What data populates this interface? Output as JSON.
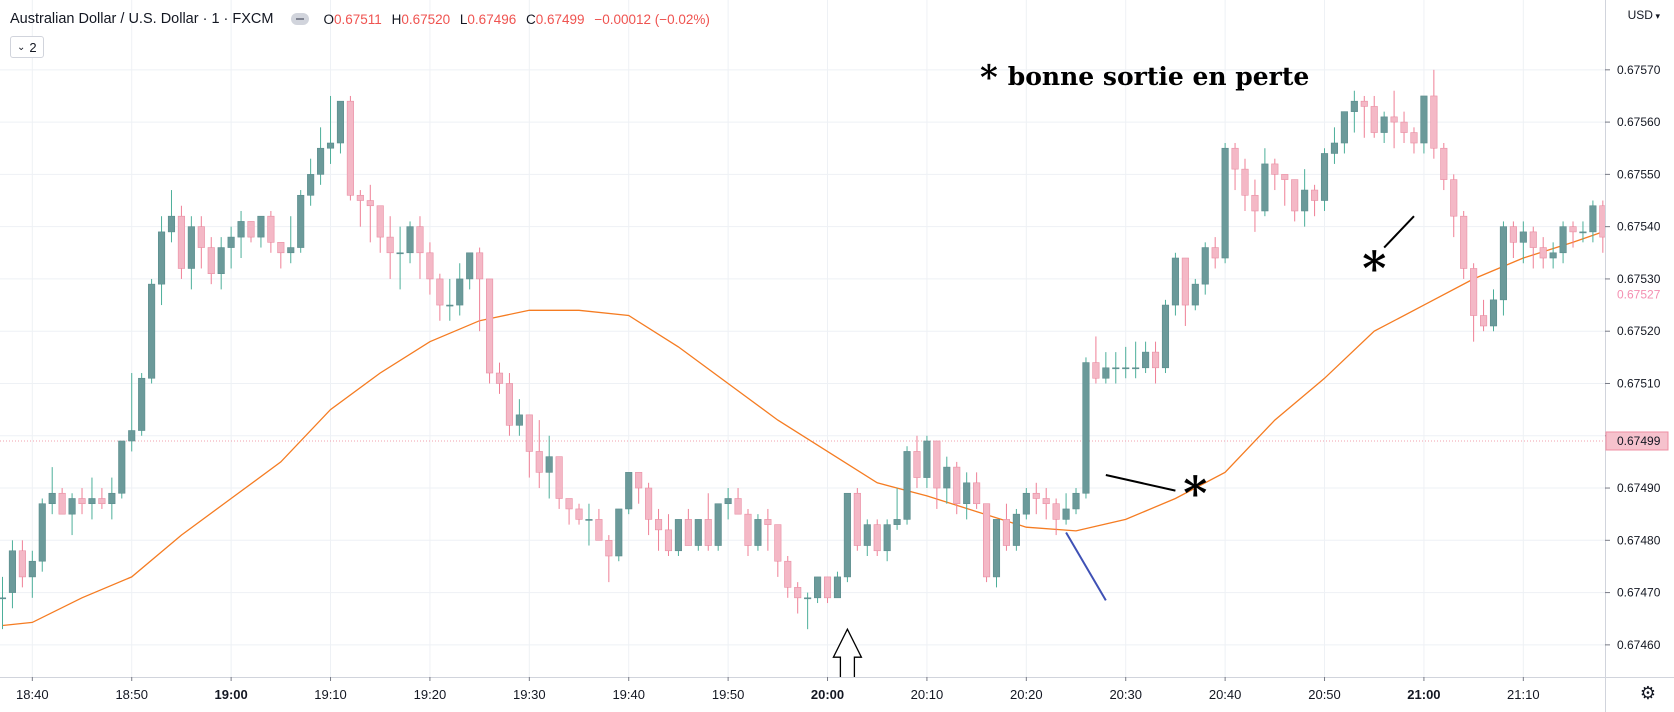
{
  "header": {
    "symbol": "Australian Dollar / U.S. Dollar · 1 · FXCM",
    "o_label": "O",
    "o_value": "0.67511",
    "h_label": "H",
    "h_value": "0.67520",
    "l_label": "L",
    "l_value": "0.67496",
    "c_label": "C",
    "c_value": "0.67499",
    "change": "−0.00012 (−0.02%)",
    "indicator_count": "2"
  },
  "currency_menu": "USD",
  "annotation_text": "bonne sortie en perte",
  "annotation_star": "*",
  "colors": {
    "up": "#6b9a9a",
    "down": "#f4b8c6",
    "ma": "#f57c22",
    "last_price_bg": "#f6c2cd"
  },
  "chart_data": {
    "type": "candlestick",
    "interval_minutes": 1,
    "start_time": "18:37",
    "ylim": [
      0.67455,
      0.67578
    ],
    "y_ticks": [
      "0.67460",
      "0.67470",
      "0.67480",
      "0.67490",
      "0.67500",
      "0.67510",
      "0.67520",
      "0.67530",
      "0.67540",
      "0.67550",
      "0.67560",
      "0.67570"
    ],
    "x_ticks": [
      {
        "time": "18:40",
        "label": "18:40",
        "bold": false
      },
      {
        "time": "18:50",
        "label": "18:50",
        "bold": false
      },
      {
        "time": "19:00",
        "label": "19:00",
        "bold": true
      },
      {
        "time": "19:10",
        "label": "19:10",
        "bold": false
      },
      {
        "time": "19:20",
        "label": "19:20",
        "bold": false
      },
      {
        "time": "19:30",
        "label": "19:30",
        "bold": false
      },
      {
        "time": "19:40",
        "label": "19:40",
        "bold": false
      },
      {
        "time": "19:50",
        "label": "19:50",
        "bold": false
      },
      {
        "time": "20:00",
        "label": "20:00",
        "bold": true
      },
      {
        "time": "20:10",
        "label": "20:10",
        "bold": false
      },
      {
        "time": "20:20",
        "label": "20:20",
        "bold": false
      },
      {
        "time": "20:30",
        "label": "20:30",
        "bold": false
      },
      {
        "time": "20:40",
        "label": "20:40",
        "bold": false
      },
      {
        "time": "20:50",
        "label": "20:50",
        "bold": false
      },
      {
        "time": "21:00",
        "label": "21:00",
        "bold": true
      },
      {
        "time": "21:10",
        "label": "21:10",
        "bold": false
      }
    ],
    "price_labels": [
      {
        "value": 0.67499,
        "label": "0.67499",
        "style": "current"
      },
      {
        "value": 0.67527,
        "label": "0.67527",
        "style": "faded"
      }
    ],
    "moving_average": [
      {
        "t": "18:37",
        "v": 0.674637
      },
      {
        "t": "18:40",
        "v": 0.674643
      },
      {
        "t": "18:45",
        "v": 0.67469
      },
      {
        "t": "18:50",
        "v": 0.67473
      },
      {
        "t": "18:55",
        "v": 0.67481
      },
      {
        "t": "19:00",
        "v": 0.67488
      },
      {
        "t": "19:05",
        "v": 0.67495
      },
      {
        "t": "19:10",
        "v": 0.67505
      },
      {
        "t": "19:15",
        "v": 0.67512
      },
      {
        "t": "19:20",
        "v": 0.67518
      },
      {
        "t": "19:25",
        "v": 0.67522
      },
      {
        "t": "19:30",
        "v": 0.67524
      },
      {
        "t": "19:35",
        "v": 0.67524
      },
      {
        "t": "19:40",
        "v": 0.67523
      },
      {
        "t": "19:45",
        "v": 0.67517
      },
      {
        "t": "19:50",
        "v": 0.6751
      },
      {
        "t": "19:55",
        "v": 0.67503
      },
      {
        "t": "20:00",
        "v": 0.67497
      },
      {
        "t": "20:05",
        "v": 0.67491
      },
      {
        "t": "20:10",
        "v": 0.674885
      },
      {
        "t": "20:15",
        "v": 0.674855
      },
      {
        "t": "20:20",
        "v": 0.674825
      },
      {
        "t": "20:25",
        "v": 0.674818
      },
      {
        "t": "20:30",
        "v": 0.67484
      },
      {
        "t": "20:35",
        "v": 0.67488
      },
      {
        "t": "20:40",
        "v": 0.67493
      },
      {
        "t": "20:45",
        "v": 0.67503
      },
      {
        "t": "20:50",
        "v": 0.67511
      },
      {
        "t": "20:55",
        "v": 0.6752
      },
      {
        "t": "21:00",
        "v": 0.67525
      },
      {
        "t": "21:05",
        "v": 0.6753
      },
      {
        "t": "21:10",
        "v": 0.67534
      },
      {
        "t": "21:15",
        "v": 0.67537
      },
      {
        "t": "21:18",
        "v": 0.67539
      }
    ],
    "candles": [
      [
        0.67469,
        0.67473,
        0.67463,
        0.67469
      ],
      [
        0.6747,
        0.6748,
        0.67467,
        0.67478
      ],
      [
        0.67478,
        0.6748,
        0.67471,
        0.67473
      ],
      [
        0.67473,
        0.67478,
        0.67469,
        0.67476
      ],
      [
        0.67476,
        0.67488,
        0.67474,
        0.67487
      ],
      [
        0.67487,
        0.67494,
        0.67485,
        0.67489
      ],
      [
        0.67489,
        0.6749,
        0.67485,
        0.67485
      ],
      [
        0.67485,
        0.67489,
        0.67481,
        0.67488
      ],
      [
        0.67488,
        0.6749,
        0.67485,
        0.67487
      ],
      [
        0.67487,
        0.67492,
        0.67484,
        0.67488
      ],
      [
        0.67488,
        0.6749,
        0.67486,
        0.67487
      ],
      [
        0.67487,
        0.67492,
        0.67484,
        0.67489
      ],
      [
        0.67489,
        0.67498,
        0.67488,
        0.67499
      ],
      [
        0.67499,
        0.67512,
        0.67497,
        0.67501
      ],
      [
        0.67501,
        0.67512,
        0.675,
        0.67511
      ],
      [
        0.67511,
        0.6753,
        0.6751,
        0.67529
      ],
      [
        0.67529,
        0.67542,
        0.67525,
        0.67539
      ],
      [
        0.67539,
        0.67547,
        0.67537,
        0.67542
      ],
      [
        0.67542,
        0.67544,
        0.6753,
        0.67532
      ],
      [
        0.67532,
        0.67542,
        0.67528,
        0.6754
      ],
      [
        0.6754,
        0.67542,
        0.67532,
        0.67536
      ],
      [
        0.67536,
        0.67538,
        0.67529,
        0.67531
      ],
      [
        0.67531,
        0.67538,
        0.67528,
        0.67536
      ],
      [
        0.67536,
        0.6754,
        0.67532,
        0.67538
      ],
      [
        0.67538,
        0.67543,
        0.67534,
        0.67541
      ],
      [
        0.67541,
        0.67541,
        0.67537,
        0.67538
      ],
      [
        0.67538,
        0.67542,
        0.67536,
        0.67542
      ],
      [
        0.67542,
        0.67543,
        0.67535,
        0.67537
      ],
      [
        0.67537,
        0.67537,
        0.67532,
        0.67535
      ],
      [
        0.67535,
        0.67542,
        0.67533,
        0.67536
      ],
      [
        0.67536,
        0.67547,
        0.67535,
        0.67546
      ],
      [
        0.67546,
        0.67553,
        0.67544,
        0.6755
      ],
      [
        0.6755,
        0.67559,
        0.67548,
        0.67555
      ],
      [
        0.67555,
        0.67565,
        0.67552,
        0.67556
      ],
      [
        0.67556,
        0.67564,
        0.67554,
        0.67564
      ],
      [
        0.67564,
        0.67565,
        0.67545,
        0.67546
      ],
      [
        0.67546,
        0.67547,
        0.6754,
        0.67545
      ],
      [
        0.67545,
        0.67548,
        0.67537,
        0.67544
      ],
      [
        0.67544,
        0.67544,
        0.67535,
        0.67538
      ],
      [
        0.67538,
        0.67542,
        0.6753,
        0.67535
      ],
      [
        0.67535,
        0.6754,
        0.67528,
        0.67535
      ],
      [
        0.67535,
        0.67541,
        0.67533,
        0.6754
      ],
      [
        0.6754,
        0.67542,
        0.6753,
        0.67535
      ],
      [
        0.67535,
        0.67537,
        0.67527,
        0.6753
      ],
      [
        0.6753,
        0.67531,
        0.67522,
        0.67525
      ],
      [
        0.67525,
        0.6753,
        0.67522,
        0.67525
      ],
      [
        0.67525,
        0.67533,
        0.67523,
        0.6753
      ],
      [
        0.6753,
        0.67535,
        0.67528,
        0.67535
      ],
      [
        0.67535,
        0.67536,
        0.6752,
        0.6753
      ],
      [
        0.6753,
        0.67529,
        0.6751,
        0.67512
      ],
      [
        0.67512,
        0.67514,
        0.67508,
        0.6751
      ],
      [
        0.6751,
        0.67512,
        0.675,
        0.67502
      ],
      [
        0.67502,
        0.67507,
        0.675,
        0.67504
      ],
      [
        0.67504,
        0.67504,
        0.67492,
        0.67497
      ],
      [
        0.67497,
        0.67503,
        0.6749,
        0.67493
      ],
      [
        0.67493,
        0.675,
        0.67488,
        0.67496
      ],
      [
        0.67496,
        0.67496,
        0.67486,
        0.67488
      ],
      [
        0.67488,
        0.67488,
        0.67483,
        0.67486
      ],
      [
        0.67486,
        0.67487,
        0.67483,
        0.67484
      ],
      [
        0.67484,
        0.67487,
        0.67479,
        0.67484
      ],
      [
        0.67484,
        0.67486,
        0.6748,
        0.6748
      ],
      [
        0.6748,
        0.67481,
        0.67472,
        0.67477
      ],
      [
        0.67477,
        0.67486,
        0.67476,
        0.67486
      ],
      [
        0.67486,
        0.67493,
        0.67485,
        0.67493
      ],
      [
        0.67493,
        0.67493,
        0.67487,
        0.6749
      ],
      [
        0.6749,
        0.67491,
        0.67481,
        0.67484
      ],
      [
        0.67484,
        0.67486,
        0.67478,
        0.67482
      ],
      [
        0.67482,
        0.67485,
        0.67477,
        0.67478
      ],
      [
        0.67478,
        0.67484,
        0.67477,
        0.67484
      ],
      [
        0.67484,
        0.67486,
        0.67479,
        0.67479
      ],
      [
        0.67479,
        0.67484,
        0.67478,
        0.67484
      ],
      [
        0.67484,
        0.67489,
        0.67478,
        0.67479
      ],
      [
        0.67479,
        0.67487,
        0.67478,
        0.67487
      ],
      [
        0.67487,
        0.6749,
        0.67484,
        0.67488
      ],
      [
        0.67488,
        0.6749,
        0.67485,
        0.67485
      ],
      [
        0.67485,
        0.67486,
        0.67477,
        0.67479
      ],
      [
        0.67479,
        0.67485,
        0.67478,
        0.67484
      ],
      [
        0.67484,
        0.67486,
        0.67478,
        0.67483
      ],
      [
        0.67483,
        0.67483,
        0.67473,
        0.67476
      ],
      [
        0.67476,
        0.67477,
        0.67469,
        0.67471
      ],
      [
        0.67471,
        0.67472,
        0.67466,
        0.67469
      ],
      [
        0.67469,
        0.6747,
        0.67463,
        0.67469
      ],
      [
        0.67469,
        0.67473,
        0.67468,
        0.67473
      ],
      [
        0.67473,
        0.67473,
        0.67468,
        0.67469
      ],
      [
        0.67469,
        0.67474,
        0.67469,
        0.67473
      ],
      [
        0.67473,
        0.67489,
        0.67472,
        0.67489
      ],
      [
        0.67489,
        0.6749,
        0.67478,
        0.67479
      ],
      [
        0.67479,
        0.67484,
        0.67477,
        0.67483
      ],
      [
        0.67483,
        0.67484,
        0.67477,
        0.67478
      ],
      [
        0.67478,
        0.67484,
        0.67476,
        0.67483
      ],
      [
        0.67483,
        0.6749,
        0.67482,
        0.67484
      ],
      [
        0.67484,
        0.67498,
        0.67483,
        0.67497
      ],
      [
        0.67497,
        0.675,
        0.6749,
        0.67492
      ],
      [
        0.67492,
        0.675,
        0.6749,
        0.67499
      ],
      [
        0.67499,
        0.67499,
        0.67486,
        0.6749
      ],
      [
        0.6749,
        0.67496,
        0.67487,
        0.67494
      ],
      [
        0.67494,
        0.67495,
        0.67485,
        0.67487
      ],
      [
        0.67487,
        0.67493,
        0.67484,
        0.67491
      ],
      [
        0.67491,
        0.67493,
        0.67486,
        0.67487
      ],
      [
        0.67487,
        0.67487,
        0.67472,
        0.67473
      ],
      [
        0.67473,
        0.67484,
        0.67471,
        0.67484
      ],
      [
        0.67484,
        0.67487,
        0.67478,
        0.67479
      ],
      [
        0.67479,
        0.67486,
        0.67478,
        0.67485
      ],
      [
        0.67485,
        0.6749,
        0.67484,
        0.67489
      ],
      [
        0.67489,
        0.67491,
        0.67485,
        0.67488
      ],
      [
        0.67488,
        0.6749,
        0.67484,
        0.67487
      ],
      [
        0.67487,
        0.67488,
        0.67481,
        0.67484
      ],
      [
        0.67484,
        0.67489,
        0.67483,
        0.67486
      ],
      [
        0.67486,
        0.6749,
        0.67485,
        0.67489
      ],
      [
        0.67489,
        0.67515,
        0.67488,
        0.67514
      ],
      [
        0.67514,
        0.67519,
        0.6751,
        0.67511
      ],
      [
        0.67511,
        0.67516,
        0.6751,
        0.67513
      ],
      [
        0.67513,
        0.67516,
        0.6751,
        0.67513
      ],
      [
        0.67513,
        0.67517,
        0.67511,
        0.67513
      ],
      [
        0.67513,
        0.67518,
        0.67511,
        0.67513
      ],
      [
        0.67513,
        0.67518,
        0.67512,
        0.67516
      ],
      [
        0.67516,
        0.67518,
        0.6751,
        0.67513
      ],
      [
        0.67513,
        0.67526,
        0.67512,
        0.67525
      ],
      [
        0.67525,
        0.67535,
        0.67523,
        0.67534
      ],
      [
        0.67534,
        0.67534,
        0.67521,
        0.67525
      ],
      [
        0.67525,
        0.6753,
        0.67524,
        0.67529
      ],
      [
        0.67529,
        0.67537,
        0.67527,
        0.67536
      ],
      [
        0.67536,
        0.67538,
        0.67532,
        0.67534
      ],
      [
        0.67534,
        0.67556,
        0.67533,
        0.67555
      ],
      [
        0.67555,
        0.67556,
        0.67547,
        0.67551
      ],
      [
        0.67551,
        0.67553,
        0.67543,
        0.67546
      ],
      [
        0.67546,
        0.67549,
        0.67539,
        0.67543
      ],
      [
        0.67543,
        0.67555,
        0.67542,
        0.67552
      ],
      [
        0.67552,
        0.67553,
        0.67547,
        0.6755
      ],
      [
        0.6755,
        0.6755,
        0.67544,
        0.67549
      ],
      [
        0.67549,
        0.67549,
        0.67541,
        0.67543
      ],
      [
        0.67543,
        0.67551,
        0.6754,
        0.67547
      ],
      [
        0.67547,
        0.67548,
        0.67542,
        0.67545
      ],
      [
        0.67545,
        0.67555,
        0.67543,
        0.67554
      ],
      [
        0.67554,
        0.67559,
        0.67552,
        0.67556
      ],
      [
        0.67556,
        0.67562,
        0.67554,
        0.67562
      ],
      [
        0.67562,
        0.67566,
        0.67558,
        0.67564
      ],
      [
        0.67564,
        0.67565,
        0.67557,
        0.67563
      ],
      [
        0.67563,
        0.67565,
        0.67557,
        0.67558
      ],
      [
        0.67558,
        0.67562,
        0.67556,
        0.67561
      ],
      [
        0.67561,
        0.67566,
        0.67555,
        0.6756
      ],
      [
        0.6756,
        0.67562,
        0.67556,
        0.67558
      ],
      [
        0.67558,
        0.67559,
        0.67554,
        0.67556
      ],
      [
        0.67556,
        0.67565,
        0.67554,
        0.67565
      ],
      [
        0.67565,
        0.6757,
        0.67553,
        0.67555
      ],
      [
        0.67555,
        0.67556,
        0.67547,
        0.67549
      ],
      [
        0.67549,
        0.6755,
        0.67538,
        0.67542
      ],
      [
        0.67542,
        0.67543,
        0.6753,
        0.67532
      ],
      [
        0.67532,
        0.67533,
        0.67518,
        0.67523
      ],
      [
        0.67523,
        0.67526,
        0.6752,
        0.67521
      ],
      [
        0.67521,
        0.67528,
        0.6752,
        0.67526
      ],
      [
        0.67526,
        0.67541,
        0.67523,
        0.6754
      ],
      [
        0.6754,
        0.67541,
        0.67534,
        0.67537
      ],
      [
        0.67537,
        0.67541,
        0.67533,
        0.67539
      ],
      [
        0.67539,
        0.6754,
        0.67532,
        0.67536
      ],
      [
        0.67536,
        0.67538,
        0.67532,
        0.67534
      ],
      [
        0.67534,
        0.67537,
        0.67532,
        0.67535
      ],
      [
        0.67535,
        0.67541,
        0.67533,
        0.6754
      ],
      [
        0.6754,
        0.67541,
        0.67536,
        0.67539
      ],
      [
        0.67539,
        0.67541,
        0.67537,
        0.67539
      ],
      [
        0.67539,
        0.67545,
        0.67537,
        0.67544
      ],
      [
        0.67544,
        0.67545,
        0.67535,
        0.67538
      ],
      [
        0.67538,
        0.67539,
        0.67533,
        0.67534
      ],
      [
        0.67534,
        0.67536,
        0.67526,
        0.67527
      ]
    ]
  },
  "drawings": {
    "arrow_time": "20:02",
    "arrow_value": 0.67463,
    "blue_line": [
      {
        "t": "20:24",
        "v": 0.674815
      },
      {
        "t": "20:28",
        "v": 0.674685
      }
    ],
    "star_line_1": [
      {
        "t": "20:28",
        "v": 0.674925
      },
      {
        "t": "20:35",
        "v": 0.674895
      }
    ],
    "star_1": {
      "t": "20:37",
      "v": 0.67489
    },
    "star_line_2": [
      {
        "t": "20:59",
        "v": 0.67542
      },
      {
        "t": "20:56",
        "v": 0.67536
      }
    ],
    "star_2": {
      "t": "20:55",
      "v": 0.67532
    }
  }
}
